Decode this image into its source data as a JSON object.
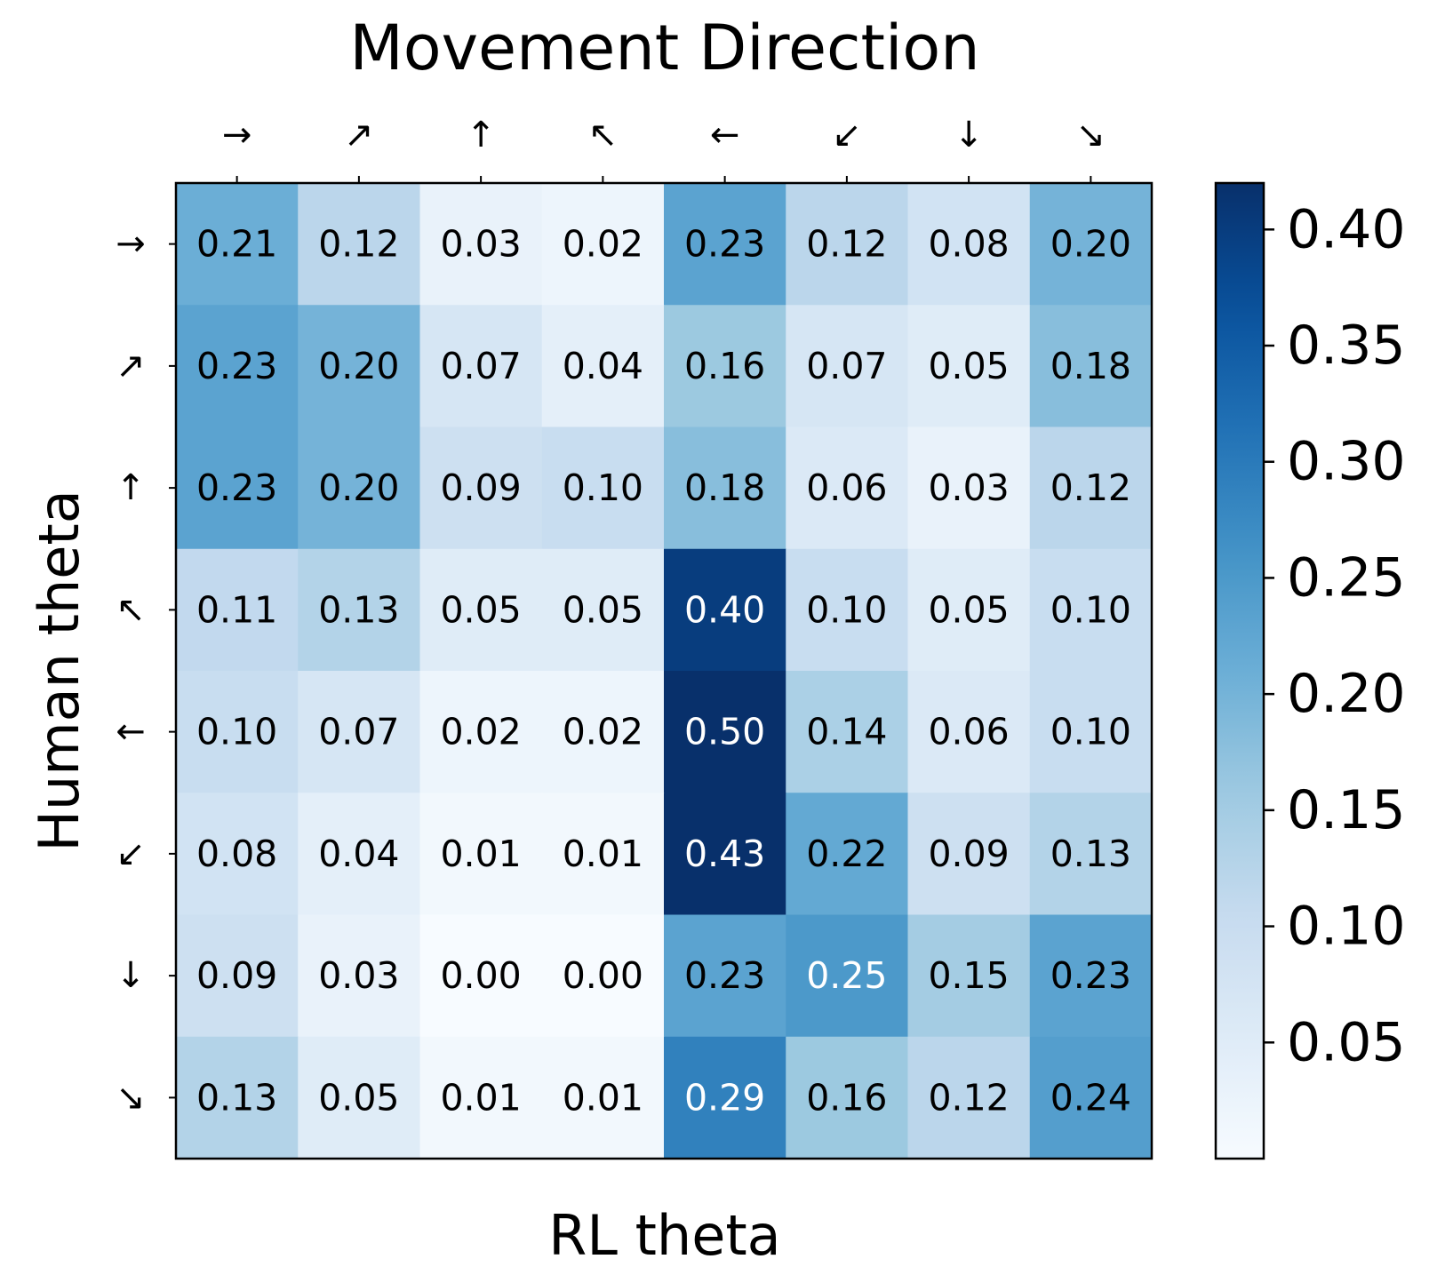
{
  "chart_data": {
    "type": "heatmap",
    "title": "Movement Direction",
    "xlabel": "RL theta",
    "ylabel": "Human theta",
    "x_categories": [
      "→",
      "↗",
      "↑",
      "↖",
      "←",
      "↙",
      "↓",
      "↘"
    ],
    "y_categories": [
      "→",
      "↗",
      "↑",
      "↖",
      "←",
      "↙",
      "↓",
      "↘"
    ],
    "x_tick_position": "top",
    "values": [
      [
        0.21,
        0.12,
        0.03,
        0.02,
        0.23,
        0.12,
        0.08,
        0.2
      ],
      [
        0.23,
        0.2,
        0.07,
        0.04,
        0.16,
        0.07,
        0.05,
        0.18
      ],
      [
        0.23,
        0.2,
        0.09,
        0.1,
        0.18,
        0.06,
        0.03,
        0.12
      ],
      [
        0.11,
        0.13,
        0.05,
        0.05,
        0.4,
        0.1,
        0.05,
        0.1
      ],
      [
        0.1,
        0.07,
        0.02,
        0.02,
        0.5,
        0.14,
        0.06,
        0.1
      ],
      [
        0.08,
        0.04,
        0.01,
        0.01,
        0.43,
        0.22,
        0.09,
        0.13
      ],
      [
        0.09,
        0.03,
        0.0,
        0.0,
        0.23,
        0.25,
        0.15,
        0.23
      ],
      [
        0.13,
        0.05,
        0.01,
        0.01,
        0.29,
        0.16,
        0.12,
        0.24
      ]
    ],
    "colorbar": {
      "colormap": "Blues",
      "range": [
        0.0,
        0.42
      ],
      "ticks": [
        0.05,
        0.1,
        0.15,
        0.2,
        0.25,
        0.3,
        0.35,
        0.4
      ],
      "tick_labels": [
        "0.05",
        "0.10",
        "0.15",
        "0.20",
        "0.25",
        "0.30",
        "0.35",
        "0.40"
      ]
    },
    "grid": false,
    "colors": {
      "colormap_low": "#f7fbff",
      "colormap_high": "#08306b",
      "text_dark": "#000000",
      "text_light": "#ffffff"
    }
  }
}
